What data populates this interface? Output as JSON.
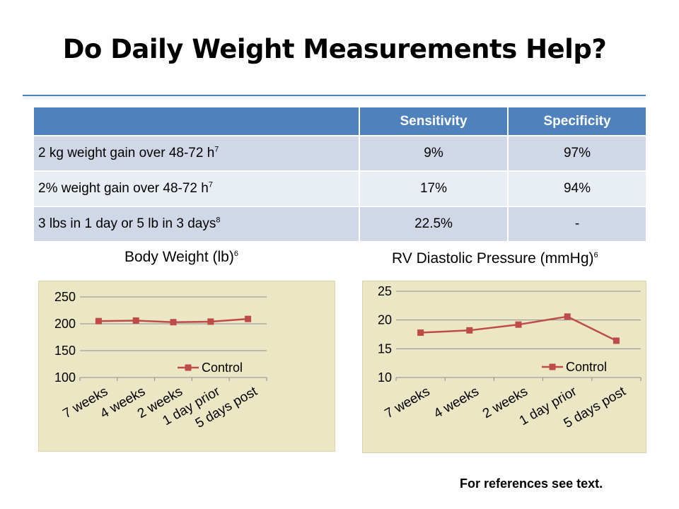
{
  "title": "Do Daily Weight Measurements Help?",
  "table": {
    "headers": [
      "",
      "Sensitivity",
      "Specificity"
    ],
    "rows": [
      {
        "label": "2 kg weight gain over 48-72 h",
        "ref": "7",
        "sensitivity": "9%",
        "specificity": "97%"
      },
      {
        "label": "2% weight gain over 48-72 h",
        "ref": "7",
        "sensitivity": "17%",
        "specificity": "94%"
      },
      {
        "label": "3 lbs in 1 day or 5 lb in 3 days",
        "ref": "8",
        "sensitivity": "22.5%",
        "specificity": "-"
      }
    ]
  },
  "chart_data": [
    {
      "type": "line",
      "title": "Body Weight (lb)",
      "title_ref": "6",
      "categories": [
        "7 weeks",
        "4 weeks",
        "2 weeks",
        "1 day prior",
        "5 days post"
      ],
      "series": [
        {
          "name": "Control",
          "values": [
            205,
            206,
            203,
            204,
            209
          ]
        }
      ],
      "ylim": [
        100,
        250
      ],
      "yticks": [
        100,
        150,
        200,
        250
      ],
      "grid": true,
      "legend": "right",
      "color": "#be4b48"
    },
    {
      "type": "line",
      "title": "RV Diastolic Pressure (mmHg)",
      "title_ref": "6",
      "categories": [
        "7 weeks",
        "4 weeks",
        "2 weeks",
        "1 day prior",
        "5 days post"
      ],
      "series": [
        {
          "name": "Control",
          "values": [
            17.8,
            18.2,
            19.2,
            20.6,
            16.4
          ]
        }
      ],
      "ylim": [
        10,
        25
      ],
      "yticks": [
        10,
        15,
        20,
        25
      ],
      "grid": true,
      "legend": "right",
      "color": "#be4b48"
    }
  ],
  "footer": "For references see text."
}
